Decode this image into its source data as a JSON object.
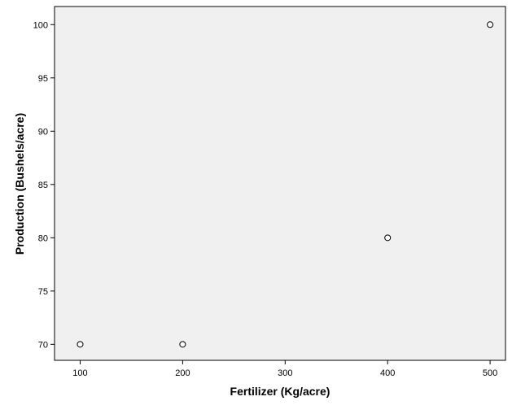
{
  "chart_data": {
    "type": "scatter",
    "title": "",
    "xlabel": "Fertilizer (Kg/acre)",
    "ylabel": "Production (Bushels/acre)",
    "xlim": [
      75,
      515
    ],
    "ylim": [
      68.5,
      101.7
    ],
    "x_ticks": [
      100,
      200,
      300,
      400,
      500
    ],
    "y_ticks": [
      70,
      75,
      80,
      85,
      90,
      95,
      100
    ],
    "grid": false,
    "legend": "none",
    "colors": {
      "plot_background": "#f0f0f0",
      "frame": "#000000",
      "marker_stroke": "#000000",
      "marker_fill": "#ffffff"
    },
    "marker": "open-circle",
    "points": [
      {
        "x": 100,
        "y": 70
      },
      {
        "x": 200,
        "y": 70
      },
      {
        "x": 400,
        "y": 80
      },
      {
        "x": 500,
        "y": 100
      }
    ]
  }
}
